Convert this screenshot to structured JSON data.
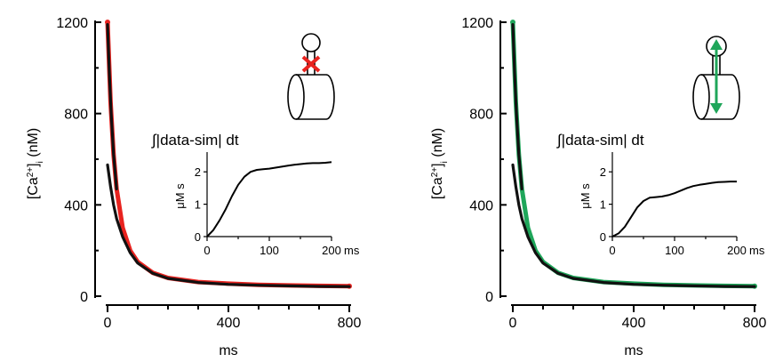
{
  "colors": {
    "left_accent": "#e8231f",
    "right_accent": "#1fa65a",
    "trace": "#111111"
  },
  "icons": {
    "left": "dendritic-spine-blocked-neck-icon",
    "right": "dendritic-spine-open-neck-icon"
  },
  "chart_data": [
    {
      "type": "line",
      "panel": "left",
      "ylabel": "[Ca2+]i (nM)",
      "xlabel": "ms",
      "xlim": [
        0,
        800
      ],
      "ylim": [
        0,
        1200
      ],
      "xticks": [
        "0",
        "400",
        "800"
      ],
      "yticks": [
        "0",
        "400",
        "800",
        "1200"
      ],
      "series": [
        {
          "color": "#e8231f",
          "x": [
            0,
            10,
            20,
            30,
            50,
            75,
            100,
            150,
            200,
            300,
            400,
            500,
            600,
            700,
            800
          ],
          "y": [
            1200,
            850,
            620,
            470,
            300,
            200,
            150,
            102,
            80,
            62,
            55,
            50,
            47,
            45,
            44
          ]
        },
        {
          "color": "#111111",
          "x": [
            0,
            10,
            20,
            30,
            50,
            75,
            100,
            150,
            200,
            300,
            400,
            500,
            600,
            700,
            800
          ],
          "y": [
            575,
            480,
            400,
            340,
            260,
            190,
            145,
            100,
            78,
            60,
            52,
            48,
            45,
            43,
            42
          ]
        },
        {
          "color": "#111111",
          "x": [
            0,
            6,
            12,
            20,
            30
          ],
          "y": [
            1190,
            980,
            800,
            620,
            470
          ]
        }
      ],
      "inset": {
        "title": "∫|data-sim| dt",
        "ylabel": "μM s",
        "xunit": "ms",
        "xlim": [
          0,
          200
        ],
        "ylim": [
          0,
          2.5
        ],
        "xticks": [
          "0",
          "100",
          "200"
        ],
        "yticks": [
          "0",
          "1",
          "2"
        ],
        "x": [
          0,
          10,
          20,
          30,
          40,
          50,
          60,
          70,
          80,
          90,
          100,
          110,
          120,
          130,
          140,
          150,
          160,
          170,
          180,
          190,
          200
        ],
        "y": [
          0.0,
          0.2,
          0.5,
          0.85,
          1.25,
          1.6,
          1.85,
          2.0,
          2.06,
          2.08,
          2.1,
          2.13,
          2.16,
          2.19,
          2.22,
          2.24,
          2.26,
          2.27,
          2.27,
          2.28,
          2.3
        ]
      }
    },
    {
      "type": "line",
      "panel": "right",
      "ylabel": "[Ca2+]i (nM)",
      "xlabel": "ms",
      "xlim": [
        0,
        800
      ],
      "ylim": [
        0,
        1200
      ],
      "xticks": [
        "0",
        "400",
        "800"
      ],
      "yticks": [
        "0",
        "400",
        "800",
        "1200"
      ],
      "series": [
        {
          "color": "#1fa65a",
          "x": [
            0,
            10,
            20,
            30,
            50,
            75,
            100,
            150,
            200,
            300,
            400,
            500,
            600,
            700,
            800
          ],
          "y": [
            1200,
            850,
            620,
            470,
            300,
            200,
            150,
            102,
            80,
            62,
            55,
            50,
            47,
            45,
            44
          ]
        },
        {
          "color": "#111111",
          "x": [
            0,
            10,
            20,
            30,
            50,
            75,
            100,
            150,
            200,
            300,
            400,
            500,
            600,
            700,
            800
          ],
          "y": [
            575,
            480,
            400,
            340,
            260,
            190,
            145,
            100,
            78,
            60,
            52,
            48,
            45,
            43,
            42
          ]
        },
        {
          "color": "#111111",
          "x": [
            0,
            6,
            12,
            20,
            30
          ],
          "y": [
            1190,
            980,
            800,
            620,
            470
          ]
        }
      ],
      "inset": {
        "title": "∫|data-sim| dt",
        "ylabel": "μM s",
        "xunit": "ms",
        "xlim": [
          0,
          200
        ],
        "ylim": [
          0,
          2.5
        ],
        "xticks": [
          "0",
          "100",
          "200"
        ],
        "yticks": [
          "0",
          "1",
          "2"
        ],
        "x": [
          0,
          10,
          20,
          30,
          40,
          50,
          60,
          70,
          80,
          90,
          100,
          110,
          120,
          130,
          140,
          150,
          160,
          170,
          180,
          190,
          200
        ],
        "y": [
          0.0,
          0.1,
          0.3,
          0.6,
          0.9,
          1.1,
          1.2,
          1.22,
          1.24,
          1.28,
          1.34,
          1.42,
          1.5,
          1.56,
          1.6,
          1.63,
          1.66,
          1.68,
          1.69,
          1.7,
          1.7
        ]
      }
    }
  ]
}
